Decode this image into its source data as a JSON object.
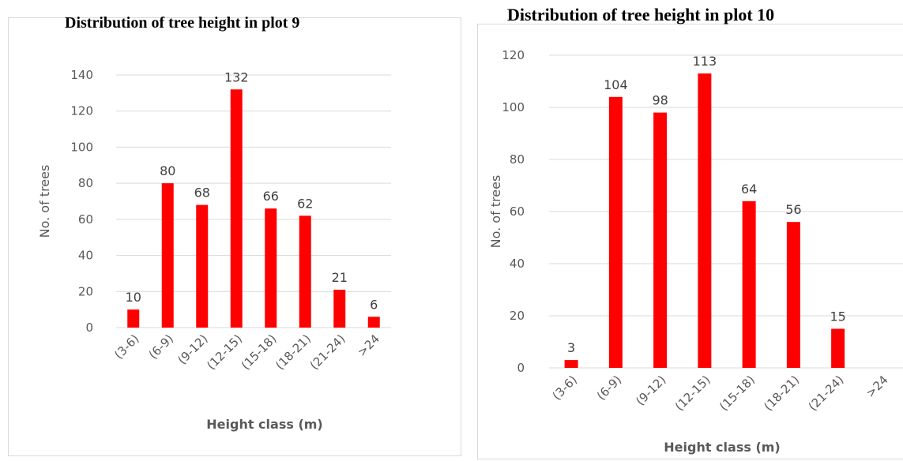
{
  "chart_data": [
    {
      "type": "bar",
      "title": "Distribution of tree height in plot 9",
      "xlabel": "Height class (m)",
      "ylabel": "No. of trees",
      "categories": [
        "(3-6)",
        "(6-9)",
        "(9-12)",
        "(12-15)",
        "(15-18)",
        "(18-21)",
        "(21-24)",
        ">24"
      ],
      "values": [
        10,
        80,
        68,
        132,
        66,
        62,
        21,
        6
      ],
      "data_labels": [
        "10",
        "80",
        "68",
        "132",
        "66",
        "62",
        "21",
        "6"
      ],
      "ylim": [
        0,
        140
      ],
      "yticks": [
        0,
        20,
        40,
        60,
        80,
        100,
        120,
        140
      ],
      "grid": true,
      "bar_color": "#ff0000"
    },
    {
      "type": "bar",
      "title": "Distribution of tree height in plot 10",
      "xlabel": "Height class (m)",
      "ylabel": "No. of trees",
      "categories": [
        "(3-6)",
        "(6-9)",
        "(9-12)",
        "(12-15)",
        "(15-18)",
        "(18-21)",
        "(21-24)",
        ">24"
      ],
      "values": [
        3,
        104,
        98,
        113,
        64,
        56,
        15,
        0
      ],
      "data_labels": [
        "3",
        "104",
        "98",
        "113",
        "64",
        "56",
        "15",
        ""
      ],
      "ylim": [
        0,
        120
      ],
      "yticks": [
        0,
        20,
        40,
        60,
        80,
        100,
        120
      ],
      "grid": true,
      "bar_color": "#ff0000"
    }
  ]
}
